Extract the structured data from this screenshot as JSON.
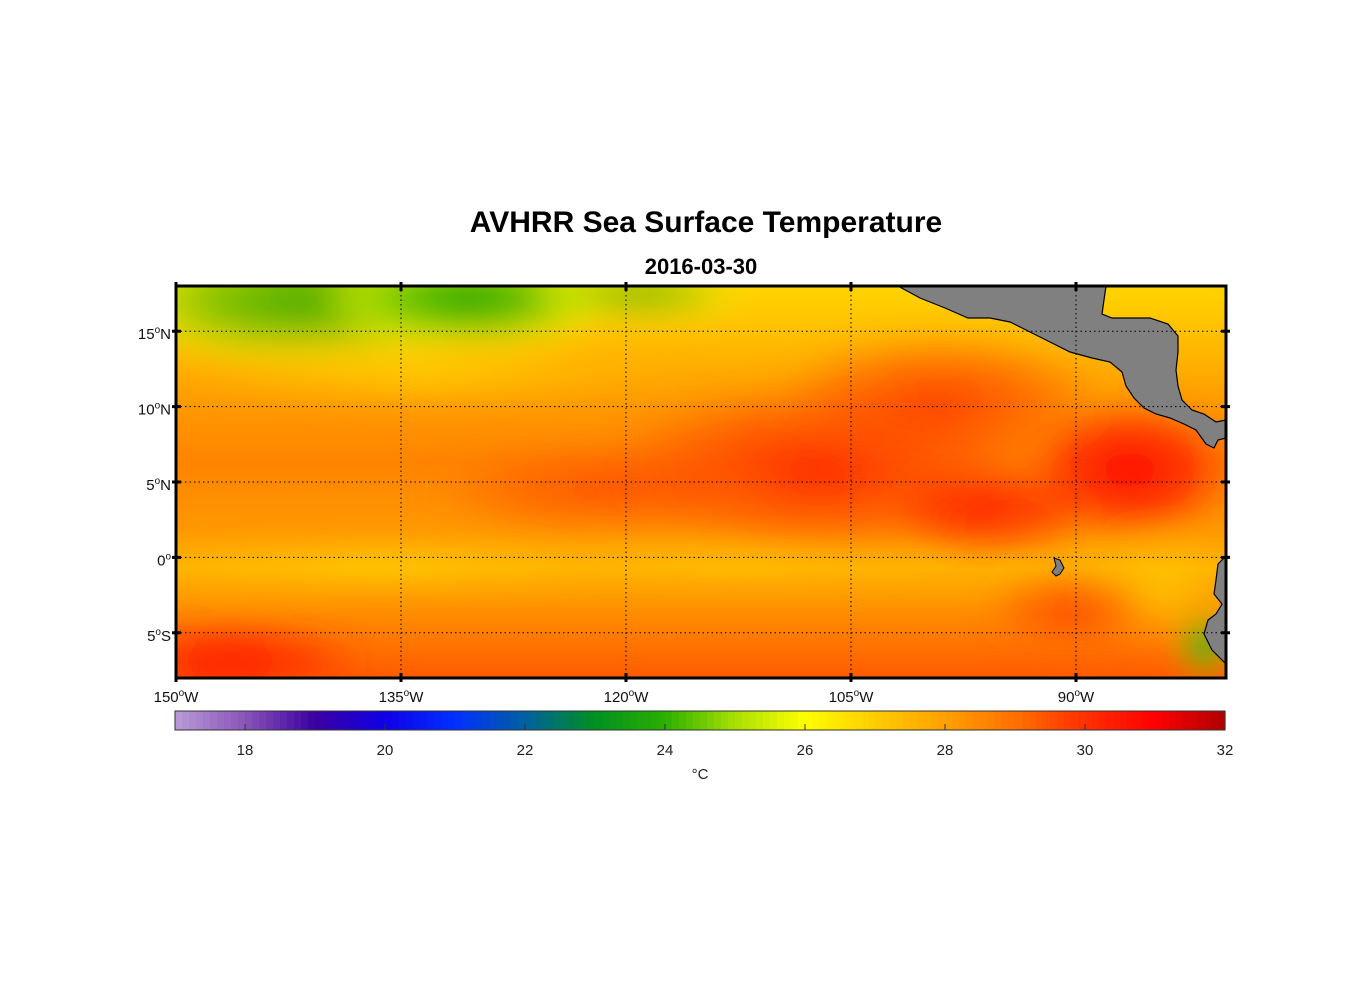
{
  "title": "AVHRR Sea Surface Temperature",
  "date": "2016-03-30",
  "map": {
    "lon_range": [
      -150,
      -80
    ],
    "lat_range": [
      -8,
      18
    ],
    "lon_ticks": [
      {
        "value": -150,
        "num": "150",
        "deg": "o",
        "hemi": "W"
      },
      {
        "value": -135,
        "num": "135",
        "deg": "o",
        "hemi": "W"
      },
      {
        "value": -120,
        "num": "120",
        "deg": "o",
        "hemi": "W"
      },
      {
        "value": -105,
        "num": "105",
        "deg": "o",
        "hemi": "W"
      },
      {
        "value": -90,
        "num": "90",
        "deg": "o",
        "hemi": "W"
      }
    ],
    "lat_ticks": [
      {
        "value": 15,
        "num": "15",
        "deg": "o",
        "hemi": "N"
      },
      {
        "value": 10,
        "num": "10",
        "deg": "o",
        "hemi": "N"
      },
      {
        "value": 5,
        "num": "5",
        "deg": "o",
        "hemi": "N"
      },
      {
        "value": 0,
        "num": "0",
        "deg": "o",
        "hemi": ""
      },
      {
        "value": -5,
        "num": "5",
        "deg": "o",
        "hemi": "S"
      }
    ],
    "grid": "dotted",
    "land_color": "#808080",
    "temperature_bands": [
      {
        "region": "north-west",
        "lat": [
          14,
          18
        ],
        "lon": [
          -140,
          -125
        ],
        "sst": 24
      },
      {
        "region": "eastern-warm-pool",
        "lat": [
          2,
          9
        ],
        "lon": [
          -95,
          -84
        ],
        "sst": 30.5
      },
      {
        "region": "equatorial-cold-tongue",
        "lat": [
          -1,
          1
        ],
        "lon": [
          -150,
          -100
        ],
        "sst": 28
      },
      {
        "region": "peru-coast",
        "lat": [
          -8,
          -5
        ],
        "lon": [
          -82,
          -80
        ],
        "sst": 24
      }
    ]
  },
  "colorbar": {
    "min": 17,
    "max": 32,
    "ticks": [
      18,
      20,
      22,
      24,
      26,
      28,
      30,
      32
    ],
    "unit": "°C",
    "stops": [
      {
        "v": 17,
        "c": "#b99ad8"
      },
      {
        "v": 18,
        "c": "#8a55b8"
      },
      {
        "v": 19,
        "c": "#3a00a0"
      },
      {
        "v": 20,
        "c": "#1000e8"
      },
      {
        "v": 21,
        "c": "#0030ff"
      },
      {
        "v": 22,
        "c": "#0060a0"
      },
      {
        "v": 23,
        "c": "#009020"
      },
      {
        "v": 24,
        "c": "#2cb000"
      },
      {
        "v": 25,
        "c": "#a8e000"
      },
      {
        "v": 26,
        "c": "#ffff00"
      },
      {
        "v": 27,
        "c": "#ffcc00"
      },
      {
        "v": 28,
        "c": "#ffa000"
      },
      {
        "v": 29,
        "c": "#ff7000"
      },
      {
        "v": 30,
        "c": "#ff3000"
      },
      {
        "v": 31,
        "c": "#ff0000"
      },
      {
        "v": 32,
        "c": "#b00000"
      }
    ]
  }
}
